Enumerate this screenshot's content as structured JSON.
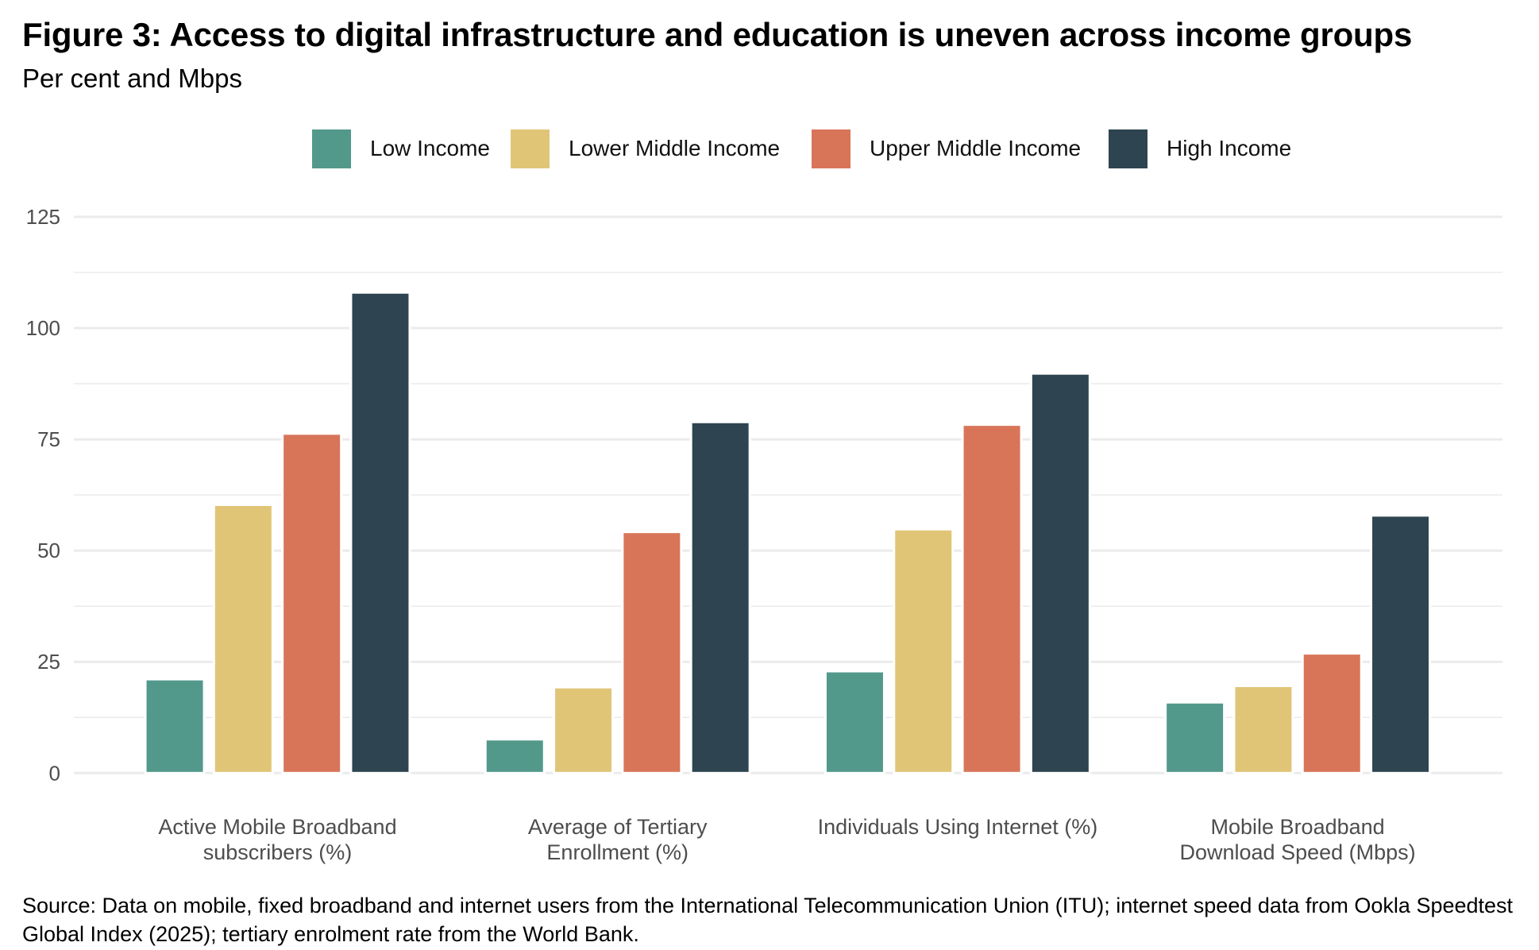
{
  "title": "Figure 3: Access to digital infrastructure and education is uneven across income groups",
  "subtitle": "Per cent and Mbps",
  "source": "Source: Data on mobile, fixed broadband and internet users from the International Telecommunication Union (ITU); internet speed data from Ookla Speedtest Global Index (2025); tertiary enrolment rate from the World Bank.",
  "colors": {
    "low_income": "#52998b",
    "lower_middle_income": "#e1c577",
    "upper_middle_income": "#d87559",
    "high_income": "#2e4450",
    "grid": "#ebebeb",
    "tick_text": "#4d4d4d"
  },
  "legend": [
    {
      "label": "Low Income",
      "color": "#52998b"
    },
    {
      "label": "Lower Middle Income",
      "color": "#e1c577"
    },
    {
      "label": "Upper Middle Income",
      "color": "#d87559"
    },
    {
      "label": "High Income",
      "color": "#2e4450"
    }
  ],
  "chart_data": {
    "type": "bar",
    "title": "Figure 3: Access to digital infrastructure and education is uneven across income groups",
    "subtitle": "Per cent and Mbps",
    "xlabel": "",
    "ylabel": "",
    "ylim": [
      0,
      125
    ],
    "yticks": [
      0,
      25,
      50,
      75,
      100,
      125
    ],
    "grid": true,
    "legend_position": "top",
    "categories": [
      "Active Mobile Broadband\nsubscribers (%)",
      "Average of Tertiary\nEnrollment (%)",
      "Individuals Using Internet (%)",
      "Mobile Broadband\nDownload Speed (Mbps)"
    ],
    "series": [
      {
        "name": "Low Income",
        "color": "#52998b",
        "values": [
          21.1,
          7.6,
          22.9,
          15.9
        ]
      },
      {
        "name": "Lower Middle Income",
        "color": "#e1c577",
        "values": [
          60.3,
          19.3,
          54.8,
          19.6
        ]
      },
      {
        "name": "Upper Middle Income",
        "color": "#d87559",
        "values": [
          76.3,
          54.2,
          78.3,
          26.9
        ]
      },
      {
        "name": "High Income",
        "color": "#2e4450",
        "values": [
          108.0,
          78.9,
          89.8,
          57.9
        ]
      }
    ]
  }
}
